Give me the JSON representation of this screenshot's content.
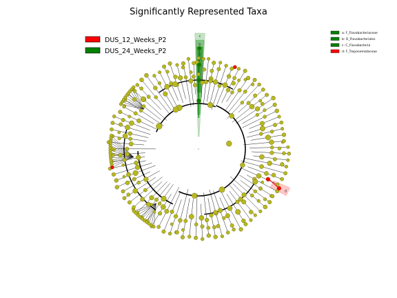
{
  "title": "Significantly Represented Taxa",
  "colors": {
    "node": "#b8b822",
    "node_stroke": "#6e6e10",
    "group_a": "#ff0000",
    "group_b": "#008000",
    "branch": "#000000"
  },
  "legend": {
    "groups": [
      {
        "label": "DUS_12_Weeks_P2",
        "color": "#ff0000"
      },
      {
        "label": "DUS_24_Weeks_P2",
        "color": "#008000"
      }
    ]
  },
  "clade_legend": [
    {
      "letter": "a",
      "text": "a: F_Flavobacteriaceae",
      "color": "#008000"
    },
    {
      "letter": "b",
      "text": "b: O_Flavobacteriales",
      "color": "#008000"
    },
    {
      "letter": "c",
      "text": "c: C_Flavobacteria",
      "color": "#008000"
    },
    {
      "letter": "d",
      "text": "d: F_Treponemataceae",
      "color": "#ff0000"
    }
  ],
  "highlights": [
    {
      "letter": "c",
      "color": "#008000",
      "opacity": 0.22
    },
    {
      "letter": "b",
      "color": "#008000",
      "opacity": 0.35
    },
    {
      "letter": "a",
      "color": "#008000",
      "opacity": 0.5
    },
    {
      "letter": "d",
      "color": "#ff0000",
      "opacity": 0.22
    }
  ]
}
